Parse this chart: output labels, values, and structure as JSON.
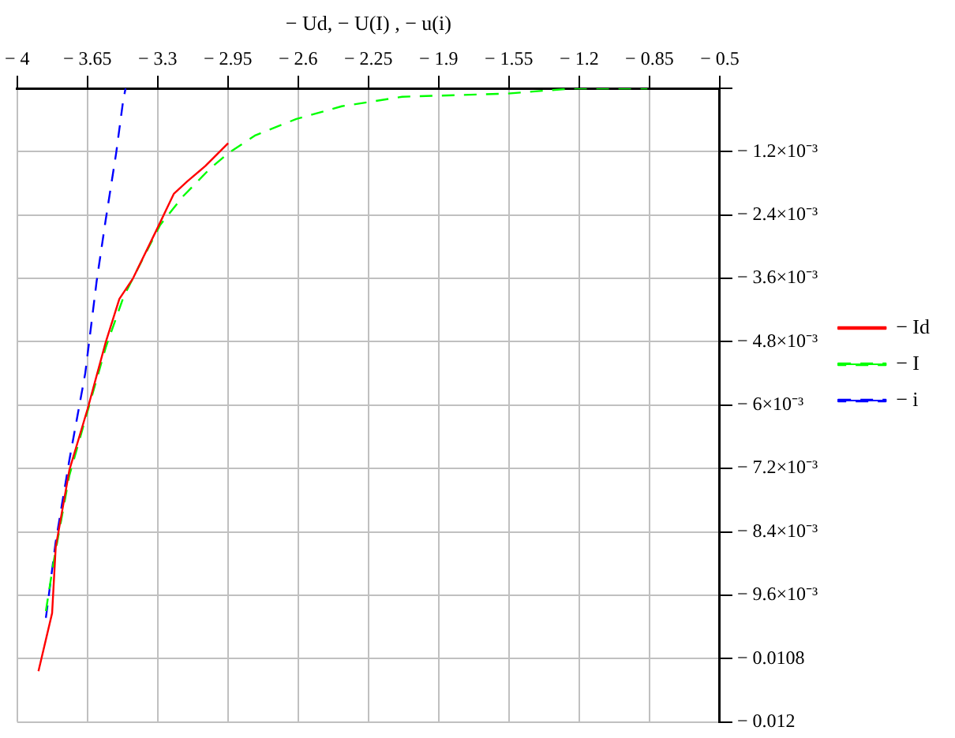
{
  "chart_data": {
    "type": "line",
    "xlabel": "− Ud, − U(I) , − u(i)",
    "xlim": [
      -4,
      -0.5
    ],
    "xticks": [
      {
        "value": -4,
        "label": "− 4"
      },
      {
        "value": -3.65,
        "label": "− 3.65"
      },
      {
        "value": -3.3,
        "label": "− 3.3"
      },
      {
        "value": -2.95,
        "label": "− 2.95"
      },
      {
        "value": -2.6,
        "label": "− 2.6"
      },
      {
        "value": -2.25,
        "label": "− 2.25"
      },
      {
        "value": -1.9,
        "label": "− 1.9"
      },
      {
        "value": -1.55,
        "label": "− 1.55"
      },
      {
        "value": -1.2,
        "label": "− 1.2"
      },
      {
        "value": -0.85,
        "label": "− 0.85"
      },
      {
        "value": -0.5,
        "label": "− 0.5"
      }
    ],
    "ylim": [
      -0.012,
      0
    ],
    "yticks": [
      {
        "value": 0,
        "label": null
      },
      {
        "value": -0.0012,
        "label": "− 1.2×10⁻³"
      },
      {
        "value": -0.0024,
        "label": "− 2.4×10⁻³"
      },
      {
        "value": -0.0036,
        "label": "− 3.6×10⁻³"
      },
      {
        "value": -0.0048,
        "label": "− 4.8×10⁻³"
      },
      {
        "value": -0.006,
        "label": "− 6×10⁻³"
      },
      {
        "value": -0.0072,
        "label": "− 7.2×10⁻³"
      },
      {
        "value": -0.0084,
        "label": "− 8.4×10⁻³"
      },
      {
        "value": -0.0096,
        "label": "− 9.6×10⁻³"
      },
      {
        "value": -0.0108,
        "label": "− 0.0108"
      },
      {
        "value": -0.012,
        "label": "− 0.012"
      }
    ],
    "grid": true,
    "legend": "right",
    "marker": "none",
    "series": [
      {
        "name": "− Id",
        "color": "#ff0000",
        "line_style": "solid",
        "x": [
          -3.894,
          -3.826,
          -3.808,
          -3.74,
          -3.649,
          -3.559,
          -3.491,
          -3.423,
          -3.299,
          -3.22,
          -3.152,
          -3.062,
          -2.949
        ],
        "values": [
          -0.01104,
          -0.00994,
          -0.00869,
          -0.00723,
          -0.00607,
          -0.00481,
          -0.00399,
          -0.0036,
          -0.00263,
          -0.002,
          -0.00176,
          -0.00147,
          -0.00104
        ]
      },
      {
        "name": "− I",
        "color": "#00ff00",
        "line_style": "dashed",
        "x": [
          -3.857,
          -3.819,
          -3.74,
          -3.559,
          -3.469,
          -3.378,
          -3.288,
          -3.175,
          -3.039,
          -2.949,
          -2.813,
          -2.609,
          -2.383,
          -2.082,
          -1.56,
          -1.221,
          -0.86
        ],
        "values": [
          -0.0099,
          -0.00898,
          -0.00733,
          -0.00491,
          -0.00394,
          -0.00326,
          -0.00259,
          -0.00205,
          -0.00152,
          -0.00123,
          -0.00089,
          -0.00058,
          -0.00034,
          -0.00016,
          -0.0001,
          0,
          0
        ]
      },
      {
        "name": "− i",
        "color": "#0000ff",
        "line_style": "dashed",
        "x": [
          -3.857,
          -3.808,
          -3.74,
          -3.661,
          -3.604,
          -3.559,
          -3.507,
          -3.473,
          -3.46
        ],
        "values": [
          -0.01003,
          -0.00859,
          -0.00704,
          -0.0054,
          -0.00365,
          -0.00249,
          -0.00123,
          -0.00026,
          0
        ]
      }
    ]
  }
}
